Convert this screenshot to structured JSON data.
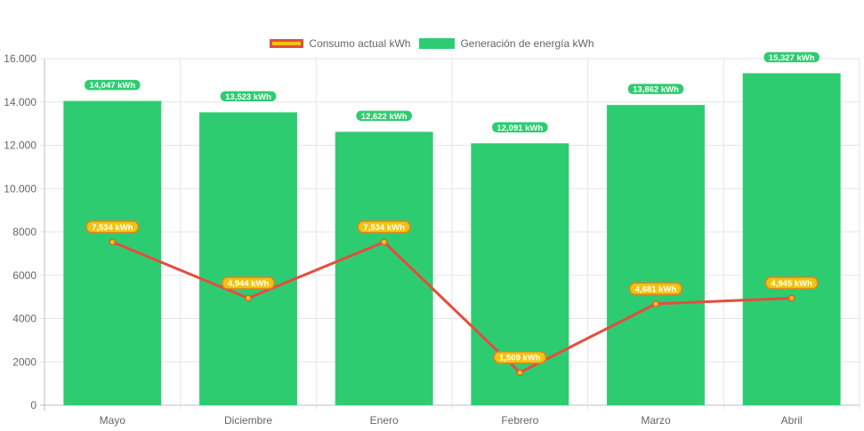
{
  "chart_data": {
    "type": "bar",
    "categories": [
      "Mayo",
      "Diciembre",
      "Enero",
      "Febrero",
      "Marzo",
      "Abril"
    ],
    "series": [
      {
        "name": "Generación de energía kWh",
        "type": "bar",
        "color": "#2ecc71",
        "values": [
          14047,
          13523,
          12622,
          12091,
          13862,
          15327
        ],
        "data_labels": [
          "14,047 kWh",
          "13,523 kWh",
          "12,622 kWh",
          "12,091 kWh",
          "13,862 kWh",
          "15,327 kWh"
        ]
      },
      {
        "name": "Consumo actual kWh",
        "type": "line",
        "color": "#e74c3c",
        "point_color": "#f1c40f",
        "values": [
          7534,
          4944,
          7534,
          1509,
          4681,
          4945
        ],
        "data_labels": [
          "7,534 kWh",
          "4,944 kWh",
          "7,534 kWh",
          "1,509 kWh",
          "4,681 kWh",
          "4,945 kWh"
        ]
      }
    ],
    "ylim": [
      0,
      16000
    ],
    "yticks": [
      0,
      2000,
      4000,
      6000,
      8000,
      10000,
      12000,
      14000,
      16000
    ],
    "ytick_labels": [
      "0",
      "2000",
      "4000",
      "6000",
      "8000",
      "10.000",
      "12.000",
      "14.000",
      "16.000"
    ],
    "grid": true,
    "legend_position": "top-center",
    "title": "",
    "xlabel": "",
    "ylabel": ""
  },
  "legend": {
    "consumo_label": "Consumo actual kWh",
    "generacion_label": "Generación de energía kWh"
  }
}
